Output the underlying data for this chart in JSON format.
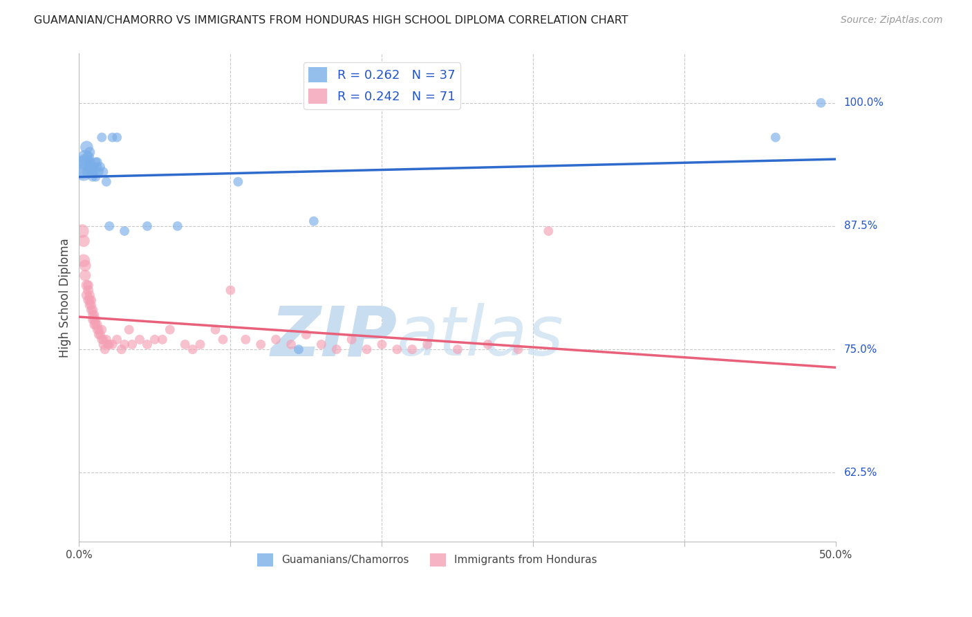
{
  "title": "GUAMANIAN/CHAMORRO VS IMMIGRANTS FROM HONDURAS HIGH SCHOOL DIPLOMA CORRELATION CHART",
  "source": "Source: ZipAtlas.com",
  "ylabel": "High School Diploma",
  "ytick_labels": [
    "62.5%",
    "75.0%",
    "87.5%",
    "100.0%"
  ],
  "ytick_values": [
    0.625,
    0.75,
    0.875,
    1.0
  ],
  "xlim": [
    0.0,
    0.5
  ],
  "ylim": [
    0.555,
    1.05
  ],
  "blue_R": 0.262,
  "blue_N": 37,
  "pink_R": 0.242,
  "pink_N": 71,
  "blue_scatter_x": [
    0.002,
    0.003,
    0.004,
    0.004,
    0.005,
    0.006,
    0.006,
    0.007,
    0.007,
    0.007,
    0.008,
    0.008,
    0.009,
    0.009,
    0.009,
    0.01,
    0.01,
    0.011,
    0.011,
    0.012,
    0.012,
    0.013,
    0.014,
    0.015,
    0.016,
    0.018,
    0.02,
    0.022,
    0.025,
    0.03,
    0.045,
    0.065,
    0.105,
    0.145,
    0.155,
    0.46,
    0.49
  ],
  "blue_scatter_y": [
    0.935,
    0.93,
    0.94,
    0.945,
    0.955,
    0.93,
    0.945,
    0.935,
    0.94,
    0.95,
    0.93,
    0.935,
    0.935,
    0.93,
    0.925,
    0.935,
    0.93,
    0.94,
    0.925,
    0.935,
    0.94,
    0.93,
    0.935,
    0.965,
    0.93,
    0.92,
    0.875,
    0.965,
    0.965,
    0.87,
    0.875,
    0.875,
    0.92,
    0.75,
    0.88,
    0.965,
    1.0
  ],
  "blue_scatter_sizes": [
    500,
    350,
    280,
    230,
    180,
    160,
    150,
    140,
    130,
    120,
    110,
    110,
    105,
    105,
    100,
    105,
    100,
    100,
    100,
    100,
    100,
    100,
    100,
    100,
    100,
    100,
    100,
    100,
    100,
    100,
    100,
    100,
    100,
    100,
    100,
    100,
    100
  ],
  "pink_scatter_x": [
    0.002,
    0.003,
    0.003,
    0.004,
    0.004,
    0.005,
    0.005,
    0.006,
    0.006,
    0.006,
    0.007,
    0.007,
    0.007,
    0.008,
    0.008,
    0.008,
    0.009,
    0.009,
    0.009,
    0.01,
    0.01,
    0.01,
    0.011,
    0.011,
    0.012,
    0.012,
    0.013,
    0.013,
    0.014,
    0.015,
    0.015,
    0.016,
    0.016,
    0.017,
    0.018,
    0.019,
    0.02,
    0.022,
    0.025,
    0.028,
    0.03,
    0.033,
    0.035,
    0.04,
    0.045,
    0.05,
    0.055,
    0.06,
    0.07,
    0.075,
    0.08,
    0.09,
    0.095,
    0.1,
    0.11,
    0.12,
    0.13,
    0.14,
    0.15,
    0.16,
    0.17,
    0.18,
    0.19,
    0.2,
    0.21,
    0.22,
    0.23,
    0.25,
    0.27,
    0.29,
    0.31
  ],
  "pink_scatter_y": [
    0.87,
    0.84,
    0.86,
    0.835,
    0.825,
    0.815,
    0.805,
    0.81,
    0.8,
    0.815,
    0.805,
    0.8,
    0.795,
    0.8,
    0.795,
    0.79,
    0.79,
    0.785,
    0.78,
    0.785,
    0.78,
    0.775,
    0.78,
    0.775,
    0.775,
    0.77,
    0.77,
    0.765,
    0.765,
    0.77,
    0.76,
    0.76,
    0.755,
    0.75,
    0.76,
    0.755,
    0.755,
    0.755,
    0.76,
    0.75,
    0.755,
    0.77,
    0.755,
    0.76,
    0.755,
    0.76,
    0.76,
    0.77,
    0.755,
    0.75,
    0.755,
    0.77,
    0.76,
    0.81,
    0.76,
    0.755,
    0.76,
    0.755,
    0.765,
    0.755,
    0.75,
    0.76,
    0.75,
    0.755,
    0.75,
    0.75,
    0.755,
    0.75,
    0.755,
    0.75,
    0.87
  ],
  "pink_scatter_sizes": [
    200,
    180,
    160,
    150,
    140,
    130,
    120,
    115,
    110,
    110,
    105,
    105,
    105,
    105,
    105,
    100,
    105,
    100,
    100,
    100,
    100,
    100,
    100,
    100,
    100,
    100,
    100,
    100,
    100,
    100,
    100,
    100,
    100,
    100,
    100,
    100,
    100,
    100,
    100,
    100,
    100,
    100,
    100,
    100,
    100,
    100,
    100,
    100,
    100,
    100,
    100,
    100,
    100,
    100,
    100,
    100,
    100,
    100,
    100,
    100,
    100,
    100,
    100,
    100,
    100,
    100,
    100,
    100,
    100,
    100,
    100
  ],
  "blue_color": "#7aaee8",
  "pink_color": "#f4a0b5",
  "blue_line_color": "#2f6bcc",
  "pink_line_color": "#e8607a",
  "legend_text_color": "#2255cc",
  "watermark_color": "#c8ddf0",
  "watermark_text1": "ZIP",
  "watermark_text2": "atlas",
  "background_color": "#ffffff",
  "grid_color": "#c8c8c8"
}
